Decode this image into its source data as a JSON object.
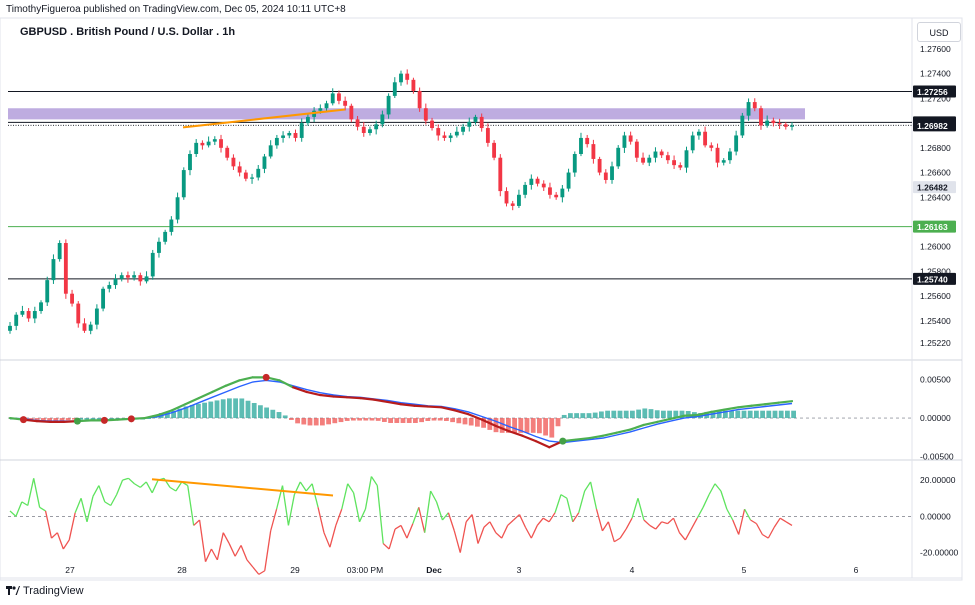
{
  "attribution": "TimothyFigueroa published on TradingView.com, Dec 05, 2024 10:11 UTC+8",
  "currency_button": "USD",
  "logo_text": "TradingView",
  "chart_data": [
    {
      "type": "candlestick",
      "title": "GBPUSD . British Pound / U.S. Dollar . 1h",
      "ylim": [
        1.251,
        1.2785
      ],
      "y_ticks": [
        "1.27600",
        "1.27400",
        "1.27200",
        "1.26800",
        "1.26600",
        "1.26400",
        "1.26000",
        "1.25800",
        "1.25600",
        "1.25400",
        "1.25220"
      ],
      "x_labels": [
        "27",
        "28",
        "29",
        "03:00 PM",
        "Dec",
        "3",
        "4",
        "5",
        "6"
      ],
      "price_levels": [
        {
          "label": "1.27256",
          "value": 1.27256,
          "color": "#131722",
          "style": "solid"
        },
        {
          "label": "1.27006",
          "value": 1.27006,
          "color": "#131722",
          "style": "solid"
        },
        {
          "label": "1.26982",
          "value": 1.26982,
          "color": "#131722",
          "style": "dotted"
        },
        {
          "label": "1.26482",
          "value": 1.26482,
          "color": "#9598a1",
          "style": "none"
        },
        {
          "label": "1.26163",
          "value": 1.26163,
          "color": "#4caf50",
          "style": "solid"
        },
        {
          "label": "1.25740",
          "value": 1.2574,
          "color": "#131722",
          "style": "solid"
        }
      ],
      "zone": {
        "from": 1.2703,
        "to": 1.2712,
        "color": "#b39ddb"
      },
      "close_path": [
        1.2536,
        1.2545,
        1.2548,
        1.2542,
        1.2548,
        1.2555,
        1.2573,
        1.259,
        1.2603,
        1.2562,
        1.2554,
        1.2538,
        1.2532,
        1.2537,
        1.255,
        1.2566,
        1.2569,
        1.2574,
        1.2577,
        1.2575,
        1.2577,
        1.2572,
        1.2576,
        1.2595,
        1.2604,
        1.2612,
        1.2622,
        1.264,
        1.2662,
        1.2675,
        1.2684,
        1.2682,
        1.2685,
        1.2687,
        1.268,
        1.2672,
        1.2665,
        1.266,
        1.2655,
        1.2656,
        1.2663,
        1.2673,
        1.2682,
        1.2688,
        1.269,
        1.2692,
        1.2688,
        1.27,
        1.2705,
        1.271,
        1.2712,
        1.2716,
        1.2724,
        1.2718,
        1.2714,
        1.2703,
        1.2697,
        1.2692,
        1.2695,
        1.2699,
        1.2707,
        1.2722,
        1.2733,
        1.274,
        1.2735,
        1.2726,
        1.2712,
        1.2702,
        1.2696,
        1.269,
        1.2688,
        1.269,
        1.2693,
        1.2697,
        1.2701,
        1.2705,
        1.2696,
        1.2684,
        1.2672,
        1.2645,
        1.2635,
        1.2633,
        1.2642,
        1.265,
        1.2655,
        1.2651,
        1.2648,
        1.2642,
        1.264,
        1.2647,
        1.266,
        1.2675,
        1.2688,
        1.2683,
        1.2671,
        1.266,
        1.2654,
        1.2665,
        1.268,
        1.269,
        1.2685,
        1.2672,
        1.2668,
        1.2672,
        1.2677,
        1.2674,
        1.267,
        1.2666,
        1.2664,
        1.2678,
        1.269,
        1.2693,
        1.2682,
        1.268,
        1.2668,
        1.267,
        1.2677,
        1.269,
        1.2706,
        1.2717,
        1.2712,
        1.2698,
        1.2702,
        1.27,
        1.2699,
        1.2697,
        1.2698
      ]
    },
    {
      "type": "line",
      "name": "MACD",
      "ylim": [
        -0.0052,
        0.0073
      ],
      "y_ticks": [
        "0.00500",
        "0.00000",
        "-0.00500"
      ],
      "series": [
        {
          "name": "",
          "color": "#4caf50",
          "values": [
            0.0,
            -0.0002,
            -0.0004,
            -0.0005,
            -0.0005,
            -0.0004,
            -0.0003,
            -0.0003,
            -0.0002,
            -0.0001,
            0.0,
            0.0004,
            0.001,
            0.0018,
            0.0026,
            0.0034,
            0.0042,
            0.0049,
            0.0053,
            0.0053,
            0.0049,
            0.004,
            0.0034,
            0.003,
            0.0028,
            0.0027,
            0.0026,
            0.0024,
            0.0021,
            0.0018,
            0.0016,
            0.0015,
            0.0014,
            0.001,
            0.0005,
            -0.0002,
            -0.001,
            -0.0017,
            -0.0023,
            -0.003,
            -0.0038,
            -0.003,
            -0.0028,
            -0.0026,
            -0.0023,
            -0.0019,
            -0.0015,
            -0.0009,
            -0.0005,
            -0.0001,
            0.0003,
            0.0004,
            0.0008,
            0.0011,
            0.0014,
            0.0016,
            0.0018,
            0.002,
            0.0022
          ]
        },
        {
          "name": "",
          "color": "#b71c1c",
          "values": [
            0.0,
            -0.0002,
            -0.0004,
            -0.0005,
            -0.0005,
            -0.0004,
            -0.0003,
            -0.0003,
            -0.0002,
            -0.0001,
            0.0,
            0.0003,
            0.0008,
            0.0015,
            0.0022,
            0.003,
            0.0037,
            0.0044,
            0.0049,
            0.005,
            0.0046,
            0.0039,
            0.0034,
            0.003,
            0.0028,
            0.0027,
            0.0027,
            0.0025,
            0.0022,
            0.0019,
            0.0018,
            0.0016,
            0.0015,
            0.0012,
            0.0007,
            0.0001,
            -0.0006,
            -0.0013,
            -0.0019,
            -0.0027,
            -0.0032,
            -0.0031,
            -0.0029,
            -0.0027,
            -0.0025,
            -0.0021,
            -0.0016,
            -0.0011,
            -0.0006,
            -0.0002,
            0.0001,
            0.0003,
            0.0006,
            0.0009,
            0.0012,
            0.0014,
            0.0016,
            0.0018,
            0.002
          ]
        },
        {
          "name": "",
          "color": "#2962ff",
          "values": [
            0.0,
            -0.0001,
            -0.0003,
            -0.0004,
            -0.0004,
            -0.0004,
            -0.0003,
            -0.0003,
            -0.0002,
            -0.0001,
            0.0,
            0.0002,
            0.0007,
            0.0013,
            0.002,
            0.0027,
            0.0034,
            0.0041,
            0.0047,
            0.0049,
            0.0047,
            0.0042,
            0.0037,
            0.0033,
            0.003,
            0.0028,
            0.0027,
            0.0025,
            0.0023,
            0.002,
            0.0018,
            0.0016,
            0.0015,
            0.0012,
            0.0008,
            0.0002,
            -0.0004,
            -0.0011,
            -0.0017,
            -0.0024,
            -0.003,
            -0.0032,
            -0.003,
            -0.0028,
            -0.0026,
            -0.0022,
            -0.0018,
            -0.0013,
            -0.0008,
            -0.0004,
            0.0,
            0.0002,
            0.0005,
            0.0008,
            0.0011,
            0.0013,
            0.0015,
            0.0017,
            0.0019
          ]
        }
      ]
    },
    {
      "type": "line",
      "name": "Oscillator",
      "ylim": [
        -34,
        30
      ],
      "y_ticks": [
        "20.00000",
        "0.00000",
        "-20.00000"
      ],
      "series": [
        {
          "name": "",
          "color": "#43a047",
          "values": [
            3,
            0,
            8,
            6,
            21,
            5,
            3,
            -12,
            -9,
            -18,
            -13,
            2,
            10,
            -3,
            11,
            17,
            8,
            6,
            12,
            20,
            21,
            18,
            16,
            19,
            13,
            20,
            21,
            16,
            14,
            19,
            17,
            -5,
            -2,
            -25,
            -18,
            -24,
            -9,
            -15,
            -22,
            -16,
            -24,
            -28,
            -32,
            -30,
            -8,
            4,
            17,
            -5,
            12,
            19,
            14,
            18,
            5,
            -9,
            -17,
            -5,
            4,
            18,
            13,
            -3,
            4,
            22,
            17,
            -15,
            -18,
            -7,
            -5,
            -12,
            -4,
            5,
            -9,
            14,
            8,
            -2,
            2,
            -8,
            -20,
            -3,
            1,
            -15,
            -6,
            -3,
            -9,
            -12,
            -5,
            -2,
            1,
            -6,
            -12,
            -5,
            -1,
            -3,
            2,
            12,
            10,
            -3,
            2,
            14,
            19,
            4,
            -8,
            -3,
            -14,
            -12,
            -7,
            -1,
            10,
            -2,
            -5,
            -7,
            -3,
            -4,
            -1,
            -9,
            -13,
            -7,
            -1,
            5,
            12,
            18,
            14,
            4,
            -2,
            -10,
            4,
            -2,
            -4,
            -10,
            -12,
            -6,
            -1,
            -3,
            -5
          ]
        }
      ],
      "threshold": 0
    }
  ],
  "annotations": {
    "divergence_color": "#ff9800",
    "cross_up_color": "#43a047",
    "cross_down_color": "#c62828"
  }
}
